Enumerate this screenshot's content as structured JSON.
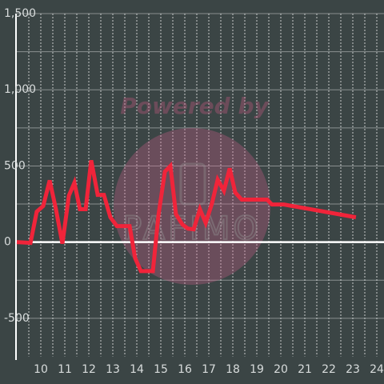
{
  "chart_data": {
    "type": "line",
    "watermark": "Powered by",
    "watermark_logo": "PAFIMO",
    "x": [
      9,
      9.57,
      9.83,
      10.1,
      10.37,
      10.63,
      10.9,
      11.17,
      11.4,
      11.63,
      11.87,
      12.1,
      12.37,
      12.63,
      12.9,
      13.17,
      13.43,
      13.7,
      13.93,
      14.17,
      14.43,
      14.67,
      14.9,
      15.17,
      15.4,
      15.63,
      15.9,
      16.13,
      16.37,
      16.63,
      16.87,
      17.13,
      17.37,
      17.63,
      17.87,
      18.1,
      18.37,
      18.63,
      18.9,
      19.17,
      19.43,
      19.63,
      20.13,
      23.13
    ],
    "series": [
      {
        "color": "#f0243a",
        "values": [
          0,
          -5,
          200,
          237,
          405,
          216,
          -10,
          305,
          390,
          216,
          216,
          537,
          310,
          310,
          163,
          105,
          105,
          105,
          -105,
          -190,
          -190,
          -190,
          174,
          463,
          500,
          184,
          116,
          89,
          84,
          216,
          126,
          253,
          410,
          337,
          484,
          326,
          279,
          279,
          279,
          279,
          279,
          247,
          247,
          163
        ]
      }
    ],
    "xlim": [
      9,
      24.3
    ],
    "ylim": [
      -750,
      1500
    ],
    "xticks": [
      10,
      11,
      12,
      13,
      14,
      15,
      16,
      17,
      18,
      19,
      20,
      21,
      22,
      23,
      24
    ],
    "xminorticks": [
      9.5,
      10.5,
      11.5,
      12.5,
      13.5,
      14.5,
      15.5,
      16.5,
      17.5,
      18.5,
      19.5,
      20.5,
      21.5,
      22.5,
      23.5
    ],
    "yticks": [
      {
        "value": 1500,
        "label": "1,500"
      },
      {
        "value": 1000,
        "label": "1,000"
      },
      500,
      0,
      -500
    ],
    "yminorticks": [
      1250,
      750,
      250,
      -250
    ],
    "grid": true
  }
}
